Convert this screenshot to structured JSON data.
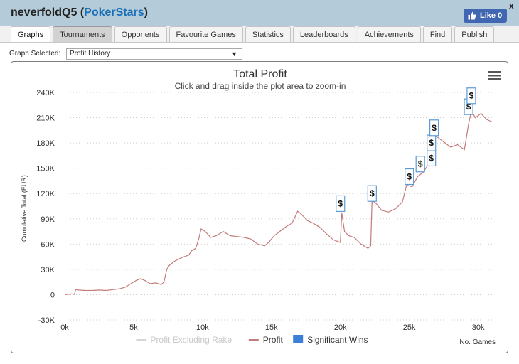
{
  "window": {
    "player_name": "neverfoldQ5",
    "site_name": "PokerStars",
    "like_label": "Like 0",
    "close_label": "x"
  },
  "tabs": [
    {
      "label": "Graphs",
      "active": true
    },
    {
      "label": "Tournaments",
      "active": false
    },
    {
      "label": "Opponents",
      "active": false
    },
    {
      "label": "Favourite Games",
      "active": false
    },
    {
      "label": "Statistics",
      "active": false
    },
    {
      "label": "Leaderboards",
      "active": false
    },
    {
      "label": "Achievements",
      "active": false
    },
    {
      "label": "Find",
      "active": false
    },
    {
      "label": "Publish",
      "active": false
    }
  ],
  "graph_selector": {
    "label": "Graph Selected:",
    "value": "Profit History",
    "arrow": "▼"
  },
  "chart_data": {
    "type": "line",
    "title": "Total Profit",
    "subtitle": "Click and drag inside the plot area to zoom-in",
    "xlabel": "No. Games",
    "ylabel": "Cumulative Total (EUR)",
    "xlim": [
      0,
      31000
    ],
    "ylim": [
      -30000,
      240000
    ],
    "x_ticks": [
      0,
      5000,
      10000,
      15000,
      20000,
      25000,
      30000
    ],
    "x_tick_labels": [
      "0k",
      "5k",
      "10k",
      "15k",
      "20k",
      "25k",
      "30k"
    ],
    "y_ticks": [
      -30000,
      0,
      30000,
      60000,
      90000,
      120000,
      150000,
      180000,
      210000,
      240000
    ],
    "y_tick_labels": [
      "-30K",
      "0",
      "30K",
      "60K",
      "90K",
      "120K",
      "150K",
      "180K",
      "210K",
      "240K"
    ],
    "grid": "horizontal-dotted",
    "legend_position": "bottom-center",
    "legend": [
      {
        "name": "Profit Excluding Rake",
        "color": "#d6d6d6",
        "kind": "line"
      },
      {
        "name": "Profit",
        "color": "#c47b7b",
        "kind": "line"
      },
      {
        "name": "Significant Wins",
        "color": "#3b7fd6",
        "kind": "box"
      }
    ],
    "series": [
      {
        "name": "Profit",
        "color": "#c47b7b",
        "points": [
          [
            0,
            0
          ],
          [
            300,
            500
          ],
          [
            500,
            1000
          ],
          [
            700,
            500
          ],
          [
            800,
            6000
          ],
          [
            1000,
            5500
          ],
          [
            1500,
            5000
          ],
          [
            2000,
            5000
          ],
          [
            2500,
            5500
          ],
          [
            3000,
            5000
          ],
          [
            3500,
            6000
          ],
          [
            4000,
            7000
          ],
          [
            4400,
            9000
          ],
          [
            4800,
            13000
          ],
          [
            5200,
            17000
          ],
          [
            5500,
            19000
          ],
          [
            5800,
            17000
          ],
          [
            6200,
            13000
          ],
          [
            6600,
            14000
          ],
          [
            7000,
            12000
          ],
          [
            7200,
            15000
          ],
          [
            7400,
            30000
          ],
          [
            7600,
            35000
          ],
          [
            8000,
            40000
          ],
          [
            8500,
            44000
          ],
          [
            9000,
            47000
          ],
          [
            9200,
            52000
          ],
          [
            9500,
            55000
          ],
          [
            9700,
            65000
          ],
          [
            9900,
            78000
          ],
          [
            10200,
            75000
          ],
          [
            10600,
            68000
          ],
          [
            11000,
            70000
          ],
          [
            11500,
            75000
          ],
          [
            12000,
            70000
          ],
          [
            12500,
            69000
          ],
          [
            13000,
            68000
          ],
          [
            13500,
            66000
          ],
          [
            14000,
            60000
          ],
          [
            14500,
            58000
          ],
          [
            14800,
            62000
          ],
          [
            15200,
            70000
          ],
          [
            15600,
            75000
          ],
          [
            16000,
            80000
          ],
          [
            16500,
            85000
          ],
          [
            16900,
            99000
          ],
          [
            17200,
            95000
          ],
          [
            17600,
            88000
          ],
          [
            18000,
            85000
          ],
          [
            18500,
            80000
          ],
          [
            19000,
            72000
          ],
          [
            19500,
            65000
          ],
          [
            20000,
            62000
          ],
          [
            20100,
            97000
          ],
          [
            20300,
            75000
          ],
          [
            20600,
            70000
          ],
          [
            21000,
            68000
          ],
          [
            21500,
            60000
          ],
          [
            22000,
            55000
          ],
          [
            22200,
            58000
          ],
          [
            22300,
            112000
          ],
          [
            22600,
            108000
          ],
          [
            23000,
            100000
          ],
          [
            23500,
            98000
          ],
          [
            24000,
            102000
          ],
          [
            24500,
            110000
          ],
          [
            24800,
            130000
          ],
          [
            25200,
            128000
          ],
          [
            25600,
            140000
          ],
          [
            26000,
            145000
          ],
          [
            26400,
            155000
          ],
          [
            26600,
            165000
          ],
          [
            26800,
            190000
          ],
          [
            27200,
            185000
          ],
          [
            27600,
            180000
          ],
          [
            28000,
            175000
          ],
          [
            28500,
            178000
          ],
          [
            29000,
            172000
          ],
          [
            29300,
            202000
          ],
          [
            29500,
            218000
          ],
          [
            29800,
            210000
          ],
          [
            30200,
            215000
          ],
          [
            30600,
            208000
          ],
          [
            31000,
            205000
          ]
        ]
      }
    ],
    "significant_wins": [
      {
        "x": 20000,
        "y": 108000,
        "label": "$"
      },
      {
        "x": 22300,
        "y": 120000,
        "label": "$"
      },
      {
        "x": 25000,
        "y": 140000,
        "label": "$"
      },
      {
        "x": 25800,
        "y": 155000,
        "label": "$"
      },
      {
        "x": 26600,
        "y": 162000,
        "label": "$"
      },
      {
        "x": 26600,
        "y": 180000,
        "label": "$"
      },
      {
        "x": 26800,
        "y": 198000,
        "label": "$"
      },
      {
        "x": 29300,
        "y": 223000,
        "label": "$"
      },
      {
        "x": 29500,
        "y": 236000,
        "label": "$"
      }
    ]
  }
}
